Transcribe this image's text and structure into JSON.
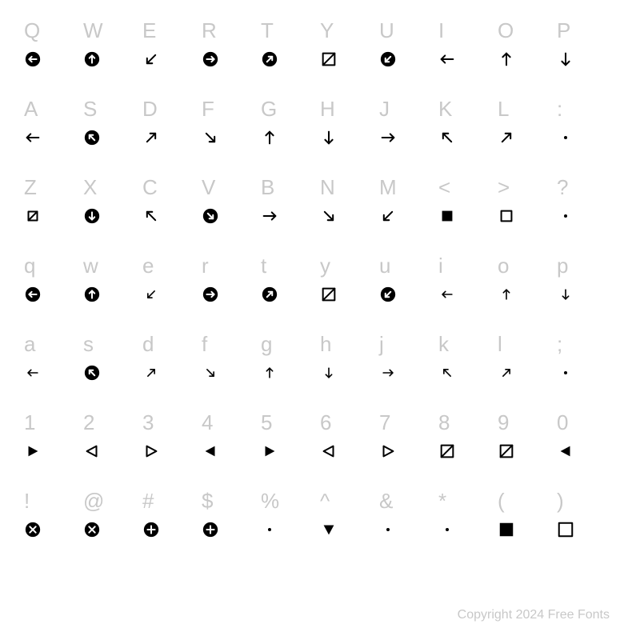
{
  "footer": "Copyright 2024 Free Fonts",
  "label_color": "#c8c8c8",
  "glyph_color": "#000000",
  "background_color": "#ffffff",
  "label_fontsize": 26,
  "glyph_size": 22,
  "columns": 10,
  "rows": [
    [
      {
        "key": "Q",
        "glyph": "circled-left"
      },
      {
        "key": "W",
        "glyph": "circled-up"
      },
      {
        "key": "E",
        "glyph": "arrow-dl"
      },
      {
        "key": "R",
        "glyph": "circled-right"
      },
      {
        "key": "T",
        "glyph": "circled-ur"
      },
      {
        "key": "Y",
        "glyph": "box-slash"
      },
      {
        "key": "U",
        "glyph": "circled-dl"
      },
      {
        "key": "I",
        "glyph": "arrow-left"
      },
      {
        "key": "O",
        "glyph": "arrow-up"
      },
      {
        "key": "P",
        "glyph": "arrow-down"
      }
    ],
    [
      {
        "key": "A",
        "glyph": "arrow-left"
      },
      {
        "key": "S",
        "glyph": "circled-ul"
      },
      {
        "key": "D",
        "glyph": "arrow-ur"
      },
      {
        "key": "F",
        "glyph": "arrow-dr"
      },
      {
        "key": "G",
        "glyph": "arrow-up"
      },
      {
        "key": "H",
        "glyph": "arrow-down"
      },
      {
        "key": "J",
        "glyph": "arrow-right"
      },
      {
        "key": "K",
        "glyph": "arrow-ul"
      },
      {
        "key": "L",
        "glyph": "arrow-ur"
      },
      {
        "key": ":",
        "glyph": "dot"
      }
    ],
    [
      {
        "key": "Z",
        "glyph": "box-slash-sm"
      },
      {
        "key": "X",
        "glyph": "circled-down"
      },
      {
        "key": "C",
        "glyph": "arrow-ul"
      },
      {
        "key": "V",
        "glyph": "circled-dr"
      },
      {
        "key": "B",
        "glyph": "arrow-right"
      },
      {
        "key": "N",
        "glyph": "arrow-dr"
      },
      {
        "key": "M",
        "glyph": "arrow-dl"
      },
      {
        "key": "<",
        "glyph": "square-fill"
      },
      {
        "key": ">",
        "glyph": "square-outline"
      },
      {
        "key": "?",
        "glyph": "dot"
      }
    ],
    [
      {
        "key": "q",
        "glyph": "circled-left-o"
      },
      {
        "key": "w",
        "glyph": "circled-up-o"
      },
      {
        "key": "e",
        "glyph": "arrow-dl-sm"
      },
      {
        "key": "r",
        "glyph": "circled-right-o"
      },
      {
        "key": "t",
        "glyph": "circled-ur-o"
      },
      {
        "key": "y",
        "glyph": "box-slash"
      },
      {
        "key": "u",
        "glyph": "circled-dl-o"
      },
      {
        "key": "i",
        "glyph": "arrow-left-sm"
      },
      {
        "key": "o",
        "glyph": "arrow-up-sm"
      },
      {
        "key": "p",
        "glyph": "arrow-down-sm"
      }
    ],
    [
      {
        "key": "a",
        "glyph": "arrow-left-sm"
      },
      {
        "key": "s",
        "glyph": "circled-ul-o"
      },
      {
        "key": "d",
        "glyph": "arrow-ur-sm"
      },
      {
        "key": "f",
        "glyph": "arrow-dr-sm"
      },
      {
        "key": "g",
        "glyph": "arrow-up-sm"
      },
      {
        "key": "h",
        "glyph": "arrow-down-sm"
      },
      {
        "key": "j",
        "glyph": "arrow-right-sm"
      },
      {
        "key": "k",
        "glyph": "arrow-ul-sm"
      },
      {
        "key": "l",
        "glyph": "arrow-ur-sm"
      },
      {
        "key": ";",
        "glyph": "dot"
      }
    ],
    [
      {
        "key": "1",
        "glyph": "tri-right-fill"
      },
      {
        "key": "2",
        "glyph": "tri-left-outline"
      },
      {
        "key": "3",
        "glyph": "tri-right-outline"
      },
      {
        "key": "4",
        "glyph": "tri-left-fill"
      },
      {
        "key": "5",
        "glyph": "tri-right-fill"
      },
      {
        "key": "6",
        "glyph": "tri-left-outline"
      },
      {
        "key": "7",
        "glyph": "tri-right-outline"
      },
      {
        "key": "8",
        "glyph": "box-slash"
      },
      {
        "key": "9",
        "glyph": "box-slash"
      },
      {
        "key": "0",
        "glyph": "tri-left-fill"
      }
    ],
    [
      {
        "key": "!",
        "glyph": "circled-x"
      },
      {
        "key": "@",
        "glyph": "circled-x-o"
      },
      {
        "key": "#",
        "glyph": "circled-plus"
      },
      {
        "key": "$",
        "glyph": "circled-plus-o"
      },
      {
        "key": "%",
        "glyph": "dot"
      },
      {
        "key": "^",
        "glyph": "tri-down-fill"
      },
      {
        "key": "&",
        "glyph": "dot"
      },
      {
        "key": "*",
        "glyph": "dot"
      },
      {
        "key": "(",
        "glyph": "square-fill-lg"
      },
      {
        "key": ")",
        "glyph": "square-outline-lg"
      }
    ]
  ]
}
